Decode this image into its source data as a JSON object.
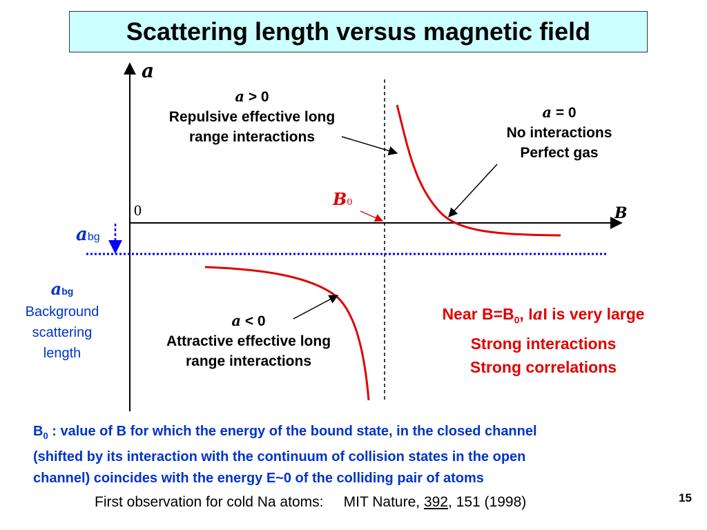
{
  "title": "Scattering length versus magnetic field",
  "axis": {
    "y_symbol": "a",
    "x_symbol": "B",
    "origin": "0"
  },
  "resonance": {
    "symbol": "B",
    "subscript": "0"
  },
  "abg": {
    "symbol": "a",
    "subscript": "bg"
  },
  "regions": {
    "positive": {
      "symbol": "a",
      "relation": " > 0",
      "line1": "Repulsive effective long",
      "line2": "range interactions"
    },
    "zero": {
      "symbol": "a",
      "relation": " = 0",
      "line1": "No interactions",
      "line2": "Perfect gas"
    },
    "negative": {
      "symbol": "a",
      "relation": " < 0",
      "line1": "Attractive effective long",
      "line2": "range interactions"
    }
  },
  "background_note": {
    "symbol": "a",
    "subscript": "bg",
    "line1": "Background",
    "line2": "scattering",
    "line3": "length"
  },
  "near_note": {
    "l1_pre": "Near B=B",
    "l1_sub": "0",
    "l1_mid": ", I",
    "l1_sym": "a",
    "l1_post": "I  is very large",
    "l2": "Strong interactions",
    "l3": "Strong correlations"
  },
  "definition": {
    "b": "B",
    "sub": "0",
    "l1": " : value of B for which the energy of the bound state, in the closed channel",
    "l2": "(shifted by its interaction with the continuum of collision states in the open",
    "l3": "channel) coincides with the energy E~0 of the colliding pair of atoms"
  },
  "citation": {
    "pre": "First observation for cold Na atoms:     MIT Nature, ",
    "vol": "392",
    "post": ", 151 (1998)"
  },
  "page_number": "15",
  "colors": {
    "curve": "#e00000",
    "dotted": "#0000ff",
    "blue_text": "#0033cc",
    "title_bg": "#ccffff"
  }
}
